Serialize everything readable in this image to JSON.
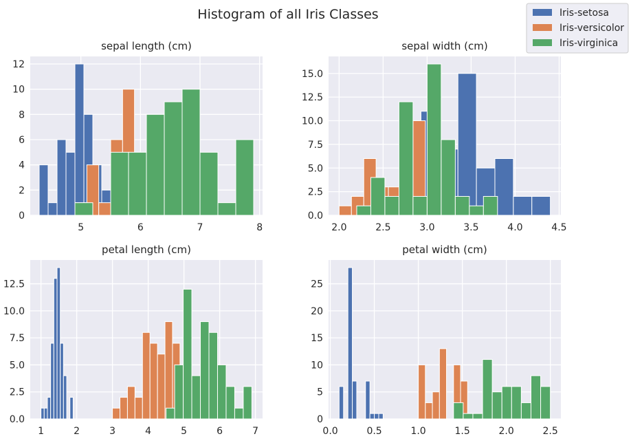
{
  "figure": {
    "title": "Histogram of all Iris Classes",
    "background": "#ffffff",
    "axes_background": "#eaeaf2",
    "grid_color": "#ffffff"
  },
  "legend": {
    "placement": "top-right",
    "items": [
      {
        "label": "Iris-setosa",
        "color": "#4c72b0"
      },
      {
        "label": "Iris-versicolor",
        "color": "#dd8452"
      },
      {
        "label": "Iris-virginica",
        "color": "#55a868"
      }
    ]
  },
  "chart_data": [
    {
      "type": "bar",
      "title": "sepal length (cm)",
      "xlim": [
        4.15,
        8.05
      ],
      "ylim": [
        0,
        12.6
      ],
      "xticks": [
        5,
        6,
        7,
        8
      ],
      "xticklabels": [
        "5",
        "6",
        "7",
        "8"
      ],
      "yticks": [
        0,
        2,
        4,
        6,
        8,
        10,
        12
      ],
      "yticklabels": [
        "0",
        "2",
        "4",
        "6",
        "8",
        "10",
        "12"
      ],
      "grid": true,
      "series": [
        {
          "name": "Iris-setosa",
          "color": "#4c72b0",
          "bins": [
            [
              4.3,
              4.45,
              4
            ],
            [
              4.45,
              4.6,
              1
            ],
            [
              4.6,
              4.75,
              6
            ],
            [
              4.75,
              4.9,
              5
            ],
            [
              4.9,
              5.05,
              12
            ],
            [
              5.05,
              5.2,
              8
            ],
            [
              5.2,
              5.35,
              4
            ],
            [
              5.35,
              5.5,
              2
            ],
            [
              5.5,
              5.65,
              5
            ],
            [
              5.65,
              5.8,
              3
            ]
          ]
        },
        {
          "name": "Iris-versicolor",
          "color": "#dd8452",
          "bins": [
            [
              4.9,
              5.1,
              1
            ],
            [
              5.1,
              5.3,
              4
            ],
            [
              5.3,
              5.5,
              1
            ],
            [
              5.5,
              5.7,
              6
            ],
            [
              5.7,
              5.9,
              10
            ],
            [
              5.9,
              6.1,
              5
            ],
            [
              6.1,
              6.3,
              8
            ],
            [
              6.3,
              6.5,
              4
            ],
            [
              6.5,
              6.7,
              5
            ],
            [
              6.7,
              6.9,
              6
            ]
          ]
        },
        {
          "name": "Iris-virginica",
          "color": "#55a868",
          "bins": [
            [
              4.9,
              5.2,
              1
            ],
            [
              5.2,
              5.5,
              0
            ],
            [
              5.5,
              5.8,
              5
            ],
            [
              5.8,
              6.1,
              5
            ],
            [
              6.1,
              6.4,
              8
            ],
            [
              6.4,
              6.7,
              9
            ],
            [
              6.7,
              7.0,
              10
            ],
            [
              7.0,
              7.3,
              5
            ],
            [
              7.3,
              7.6,
              1
            ],
            [
              7.6,
              7.9,
              6
            ]
          ]
        }
      ]
    },
    {
      "type": "bar",
      "title": "sepal width (cm)",
      "xlim": [
        1.88,
        4.52
      ],
      "ylim": [
        0,
        16.8
      ],
      "xticks": [
        2.0,
        2.5,
        3.0,
        3.5,
        4.0,
        4.5
      ],
      "xticklabels": [
        "2.0",
        "2.5",
        "3.0",
        "3.5",
        "4.0",
        "4.5"
      ],
      "yticks": [
        0,
        2.5,
        5,
        7.5,
        10,
        12.5,
        15
      ],
      "yticklabels": [
        "0.0",
        "2.5",
        "5.0",
        "7.5",
        "10.0",
        "12.5",
        "15.0"
      ],
      "grid": true,
      "series": [
        {
          "name": "Iris-setosa",
          "color": "#4c72b0",
          "bins": [
            [
              2.3,
              2.51,
              1
            ],
            [
              2.51,
              2.72,
              0
            ],
            [
              2.72,
              2.93,
              0
            ],
            [
              2.93,
              3.14,
              11
            ],
            [
              3.14,
              3.35,
              7
            ],
            [
              3.35,
              3.56,
              15
            ],
            [
              3.56,
              3.77,
              5
            ],
            [
              3.77,
              3.98,
              6
            ],
            [
              3.98,
              4.19,
              2
            ],
            [
              4.19,
              4.4,
              2
            ]
          ]
        },
        {
          "name": "Iris-versicolor",
          "color": "#dd8452",
          "bins": [
            [
              2.0,
              2.14,
              1
            ],
            [
              2.14,
              2.28,
              2
            ],
            [
              2.28,
              2.42,
              6
            ],
            [
              2.42,
              2.56,
              3
            ],
            [
              2.56,
              2.7,
              3
            ],
            [
              2.7,
              2.84,
              8
            ],
            [
              2.84,
              2.98,
              10
            ],
            [
              2.98,
              3.12,
              2
            ],
            [
              3.12,
              3.26,
              2
            ],
            [
              3.26,
              3.4,
              1
            ]
          ]
        },
        {
          "name": "Iris-virginica",
          "color": "#55a868",
          "bins": [
            [
              2.2,
              2.36,
              1
            ],
            [
              2.36,
              2.52,
              4
            ],
            [
              2.52,
              2.68,
              2
            ],
            [
              2.68,
              2.84,
              12
            ],
            [
              2.84,
              3.0,
              2
            ],
            [
              3.0,
              3.16,
              16
            ],
            [
              3.16,
              3.32,
              8
            ],
            [
              3.32,
              3.48,
              2
            ],
            [
              3.48,
              3.64,
              1
            ],
            [
              3.64,
              3.8,
              2
            ]
          ]
        }
      ]
    },
    {
      "type": "bar",
      "title": "petal length (cm)",
      "xlim": [
        0.7,
        7.2
      ],
      "ylim": [
        0,
        14.7
      ],
      "xticks": [
        1,
        2,
        3,
        4,
        5,
        6,
        7
      ],
      "xticklabels": [
        "1",
        "2",
        "3",
        "4",
        "5",
        "6",
        "7"
      ],
      "yticks": [
        0,
        2.5,
        5,
        7.5,
        10,
        12.5
      ],
      "yticklabels": [
        "0.0",
        "2.5",
        "5.0",
        "7.5",
        "10.0",
        "12.5"
      ],
      "grid": true,
      "series": [
        {
          "name": "Iris-setosa",
          "color": "#4c72b0",
          "bins": [
            [
              1.0,
              1.09,
              1
            ],
            [
              1.09,
              1.18,
              1
            ],
            [
              1.18,
              1.27,
              2
            ],
            [
              1.27,
              1.36,
              7
            ],
            [
              1.36,
              1.45,
              13
            ],
            [
              1.45,
              1.54,
              14
            ],
            [
              1.54,
              1.63,
              7
            ],
            [
              1.63,
              1.72,
              4
            ],
            [
              1.72,
              1.81,
              0
            ],
            [
              1.81,
              1.9,
              2
            ]
          ]
        },
        {
          "name": "Iris-versicolor",
          "color": "#dd8452",
          "bins": [
            [
              3.0,
              3.21,
              1
            ],
            [
              3.21,
              3.42,
              2
            ],
            [
              3.42,
              3.63,
              3
            ],
            [
              3.63,
              3.84,
              2
            ],
            [
              3.84,
              4.05,
              8
            ],
            [
              4.05,
              4.26,
              7
            ],
            [
              4.26,
              4.47,
              6
            ],
            [
              4.47,
              4.68,
              9
            ],
            [
              4.68,
              4.89,
              7
            ],
            [
              4.89,
              5.1,
              5
            ]
          ]
        },
        {
          "name": "Iris-virginica",
          "color": "#55a868",
          "bins": [
            [
              4.5,
              4.74,
              1
            ],
            [
              4.74,
              4.98,
              5
            ],
            [
              4.98,
              5.22,
              12
            ],
            [
              5.22,
              5.46,
              4
            ],
            [
              5.46,
              5.7,
              9
            ],
            [
              5.7,
              5.94,
              8
            ],
            [
              5.94,
              6.18,
              5
            ],
            [
              6.18,
              6.42,
              3
            ],
            [
              6.42,
              6.66,
              1
            ],
            [
              6.66,
              6.9,
              3
            ]
          ]
        }
      ]
    },
    {
      "type": "bar",
      "title": "petal width (cm)",
      "xlim": [
        -0.02,
        2.62
      ],
      "ylim": [
        0,
        29.4
      ],
      "xticks": [
        0.0,
        0.5,
        1.0,
        1.5,
        2.0,
        2.5
      ],
      "xticklabels": [
        "0.0",
        "0.5",
        "1.0",
        "1.5",
        "2.0",
        "2.5"
      ],
      "yticks": [
        0,
        5,
        10,
        15,
        20,
        25
      ],
      "yticklabels": [
        "0",
        "5",
        "10",
        "15",
        "20",
        "25"
      ],
      "grid": true,
      "series": [
        {
          "name": "Iris-setosa",
          "color": "#4c72b0",
          "bins": [
            [
              0.1,
              0.15,
              6
            ],
            [
              0.15,
              0.2,
              0
            ],
            [
              0.2,
              0.25,
              28
            ],
            [
              0.25,
              0.3,
              7
            ],
            [
              0.3,
              0.35,
              0
            ],
            [
              0.35,
              0.4,
              0
            ],
            [
              0.4,
              0.45,
              7
            ],
            [
              0.45,
              0.5,
              1
            ],
            [
              0.5,
              0.55,
              1
            ],
            [
              0.55,
              0.6,
              1
            ]
          ]
        },
        {
          "name": "Iris-versicolor",
          "color": "#dd8452",
          "bins": [
            [
              1.0,
              1.08,
              10
            ],
            [
              1.08,
              1.16,
              3
            ],
            [
              1.16,
              1.24,
              5
            ],
            [
              1.24,
              1.32,
              13
            ],
            [
              1.32,
              1.4,
              0
            ],
            [
              1.4,
              1.48,
              10
            ],
            [
              1.48,
              1.56,
              7
            ],
            [
              1.56,
              1.64,
              1
            ],
            [
              1.64,
              1.72,
              0
            ],
            [
              1.72,
              1.8,
              1
            ]
          ]
        },
        {
          "name": "Iris-virginica",
          "color": "#55a868",
          "bins": [
            [
              1.4,
              1.51,
              3
            ],
            [
              1.51,
              1.62,
              1
            ],
            [
              1.62,
              1.73,
              1
            ],
            [
              1.73,
              1.84,
              11
            ],
            [
              1.84,
              1.95,
              5
            ],
            [
              1.95,
              2.06,
              6
            ],
            [
              2.06,
              2.17,
              6
            ],
            [
              2.17,
              2.28,
              3
            ],
            [
              2.28,
              2.39,
              8
            ],
            [
              2.39,
              2.5,
              6
            ]
          ]
        }
      ]
    }
  ]
}
